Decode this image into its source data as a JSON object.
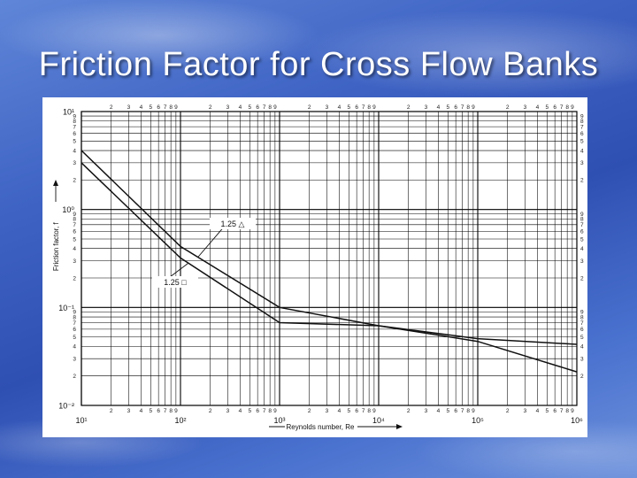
{
  "slide": {
    "title": "Friction Factor for Cross Flow Banks"
  },
  "chart_data": {
    "type": "line",
    "title": "",
    "xlabel": "Reynolds number, Re",
    "ylabel": "Friction factor, f",
    "xscale": "log",
    "yscale": "log",
    "xlim": [
      10,
      1000000
    ],
    "ylim": [
      0.01,
      10
    ],
    "grid": true,
    "x_tick_labels": [
      "10¹",
      "10²",
      "10³",
      "10⁴",
      "10⁵",
      "10⁶"
    ],
    "y_tick_labels": [
      "10¹",
      "10⁰",
      "10⁻¹",
      "10⁻²"
    ],
    "series": [
      {
        "name": "1.25 △",
        "x": [
          10,
          100,
          1000,
          10000,
          100000,
          1000000
        ],
        "y": [
          4.0,
          0.42,
          0.1,
          0.065,
          0.048,
          0.042
        ]
      },
      {
        "name": "1.25 □",
        "x": [
          10,
          100,
          1000,
          10000,
          100000,
          1000000
        ],
        "y": [
          3.0,
          0.32,
          0.07,
          0.065,
          0.045,
          0.022
        ]
      }
    ]
  }
}
